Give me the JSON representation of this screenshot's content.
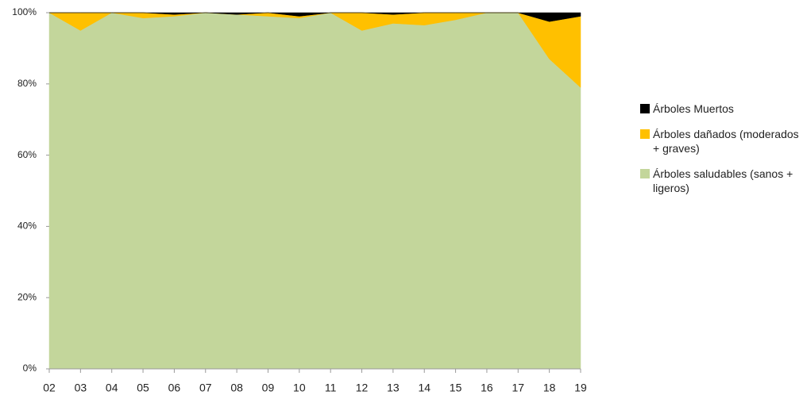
{
  "chart_data": {
    "type": "stacked_area",
    "categories": [
      "02",
      "03",
      "04",
      "05",
      "06",
      "07",
      "08",
      "09",
      "10",
      "11",
      "12",
      "13",
      "14",
      "15",
      "16",
      "17",
      "18",
      "19"
    ],
    "series": [
      {
        "name": "Árboles saludables (sanos + ligeros)",
        "color": "#c3d69b",
        "values": [
          100,
          95,
          100,
          98.5,
          99,
          100,
          99.5,
          99,
          98.5,
          100,
          95,
          97,
          96.5,
          98,
          100,
          100,
          87,
          79
        ]
      },
      {
        "name": "Árboles dañados (moderados + graves)",
        "color": "#ffc000",
        "values": [
          0,
          5,
          0,
          1.5,
          0.5,
          0,
          0,
          1,
          0.5,
          0,
          5,
          2.5,
          3.5,
          2,
          0,
          0,
          10.5,
          20
        ]
      },
      {
        "name": "Árboles Muertos",
        "color": "#000000",
        "values": [
          0,
          0,
          0,
          0,
          0.5,
          0,
          0.5,
          0,
          1,
          0,
          0,
          0.5,
          0,
          0,
          0,
          0,
          2.5,
          1
        ]
      }
    ],
    "ylim": [
      0,
      100
    ],
    "yticks": [
      {
        "value": 0,
        "label": "0%"
      },
      {
        "value": 20,
        "label": "20%"
      },
      {
        "value": 40,
        "label": "40%"
      },
      {
        "value": 60,
        "label": "60%"
      },
      {
        "value": 80,
        "label": "80%"
      },
      {
        "value": 100,
        "label": "100%"
      }
    ]
  }
}
